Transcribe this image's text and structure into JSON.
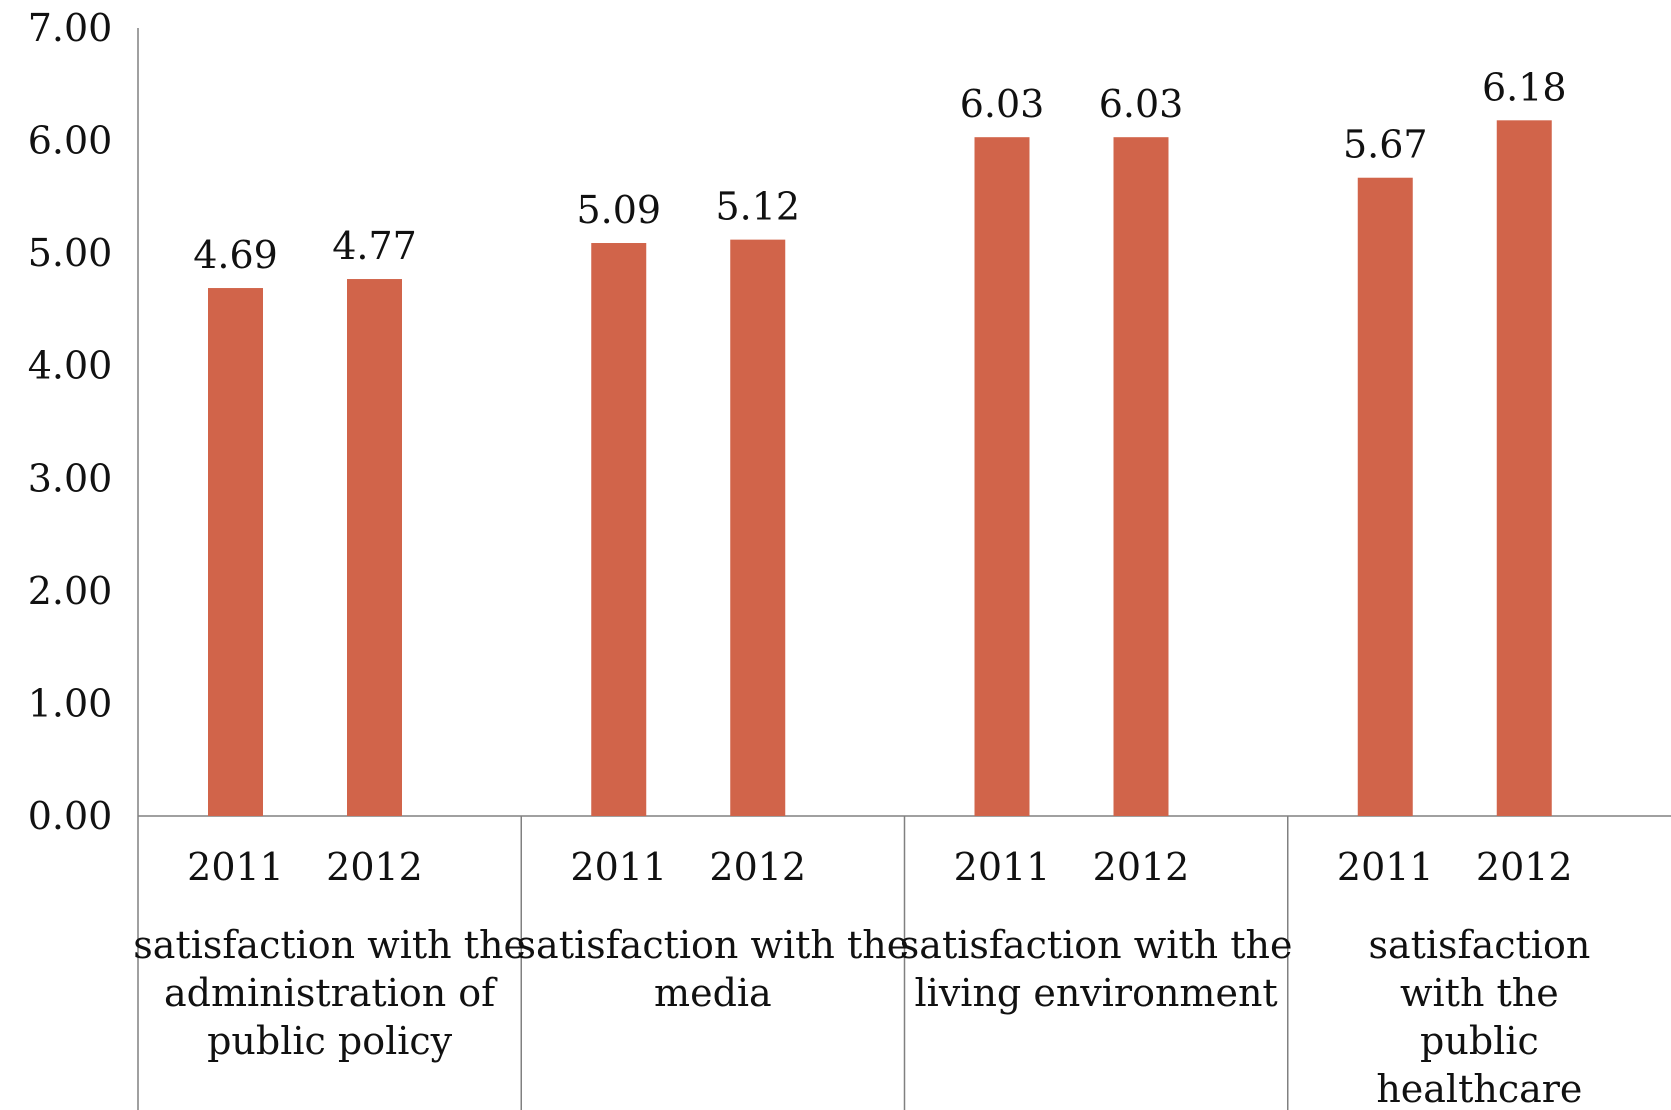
{
  "chart_data": {
    "type": "bar",
    "title": "",
    "xlabel": "",
    "ylabel": "",
    "ylim": [
      0,
      7
    ],
    "yticks": [
      "0.00",
      "1.00",
      "2.00",
      "3.00",
      "4.00",
      "5.00",
      "6.00",
      "7.00"
    ],
    "grid": false,
    "legend": "none",
    "bar_color": "#D1644A",
    "groups": [
      {
        "label": [
          "satisfaction with the",
          "administration of",
          "public policy"
        ],
        "bars": [
          {
            "year": "2011",
            "value": 4.69,
            "label": "4.69"
          },
          {
            "year": "2012",
            "value": 4.77,
            "label": "4.77"
          }
        ]
      },
      {
        "label": [
          "satisfaction with the",
          "media"
        ],
        "bars": [
          {
            "year": "2011",
            "value": 5.09,
            "label": "5.09"
          },
          {
            "year": "2012",
            "value": 5.12,
            "label": "5.12"
          }
        ]
      },
      {
        "label": [
          "satisfaction with the",
          "living environment"
        ],
        "bars": [
          {
            "year": "2011",
            "value": 6.03,
            "label": "6.03"
          },
          {
            "year": "2012",
            "value": 6.03,
            "label": "6.03"
          }
        ]
      },
      {
        "label": [
          "satisfaction",
          "with the",
          "public",
          "healthcare"
        ],
        "bars": [
          {
            "year": "2011",
            "value": 5.67,
            "label": "5.67"
          },
          {
            "year": "2012",
            "value": 6.18,
            "label": "6.18"
          }
        ]
      }
    ]
  }
}
